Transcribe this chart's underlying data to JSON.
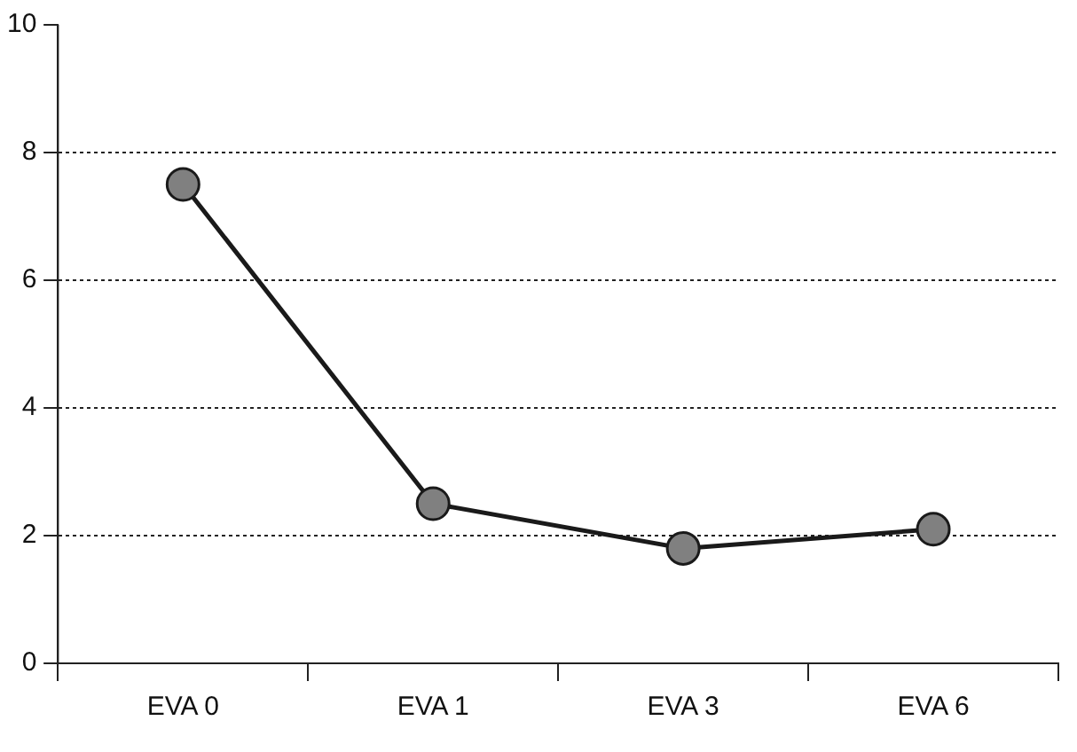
{
  "chart_data": {
    "type": "line",
    "categories": [
      "EVA 0",
      "EVA 1",
      "EVA 3",
      "EVA 6"
    ],
    "series": [
      {
        "color": "#808080",
        "values": [
          7.5,
          2.5,
          1.8,
          2.1
        ]
      }
    ],
    "ylim": [
      0,
      10
    ],
    "yticks": [
      0,
      2,
      4,
      6,
      8,
      10
    ],
    "grid": "y",
    "legend": false,
    "marker": "circle",
    "line_style": "solid"
  }
}
